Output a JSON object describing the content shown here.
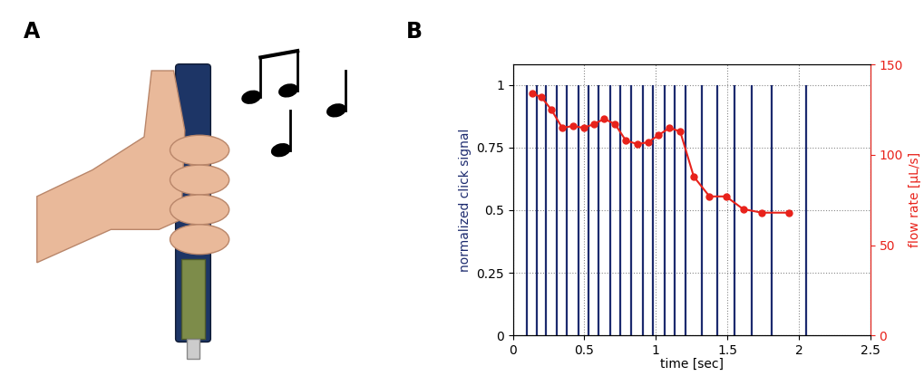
{
  "panel_labels": [
    "A",
    "B"
  ],
  "chart_data": {
    "type": "line",
    "x_label": "time [sec]",
    "y_label": "normalized click signal",
    "y2_label": "flow rate [µL/s]",
    "xlim": [
      0,
      2.5
    ],
    "xticks": [
      0,
      0.5,
      1,
      1.5,
      2,
      2.5
    ],
    "ylim": [
      0,
      1.08
    ],
    "yticks": [
      0,
      0.25,
      0.5,
      0.75,
      1
    ],
    "y2lim": [
      0,
      150
    ],
    "y2ticks": [
      0,
      50,
      100,
      150
    ],
    "grid": true,
    "series": [
      {
        "type": "spike",
        "color": "#1c2a6e",
        "x": [
          0.1,
          0.17,
          0.23,
          0.31,
          0.38,
          0.46,
          0.53,
          0.6,
          0.68,
          0.75,
          0.83,
          0.91,
          0.98,
          1.06,
          1.13,
          1.21,
          1.32,
          1.43,
          1.55,
          1.67,
          1.81,
          2.05
        ],
        "values": [
          1,
          1,
          1,
          1,
          1,
          1,
          1,
          1,
          1,
          1,
          1,
          1,
          1,
          1,
          1,
          1,
          1,
          1,
          1,
          1,
          1,
          1
        ]
      },
      {
        "type": "line",
        "axis": "y2",
        "color": "#e8221b",
        "marker": "o",
        "line_style": "solid",
        "x": [
          0.135,
          0.2,
          0.27,
          0.345,
          0.42,
          0.495,
          0.565,
          0.64,
          0.715,
          0.79,
          0.87,
          0.945,
          1.02,
          1.095,
          1.17,
          1.265,
          1.375,
          1.49,
          1.61,
          1.74,
          1.93
        ],
        "values": [
          134,
          132,
          125,
          115,
          116,
          115,
          117,
          120,
          117,
          108,
          106,
          107,
          111,
          115,
          113,
          88,
          77,
          77,
          70,
          68,
          68
        ]
      }
    ]
  }
}
